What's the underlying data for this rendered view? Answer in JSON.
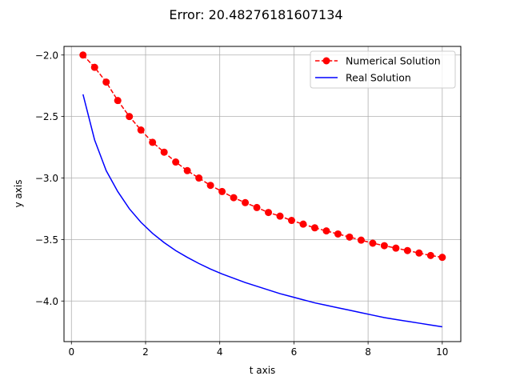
{
  "chart_data": {
    "type": "line",
    "title": "Error: 20.48276181607134",
    "xlabel": "t axis",
    "ylabel": "y axis",
    "xlim": [
      -0.2,
      10.5
    ],
    "ylim": [
      -4.33,
      -1.93
    ],
    "xticks": [
      0,
      2,
      4,
      6,
      8,
      10
    ],
    "xtick_labels": [
      "0",
      "2",
      "4",
      "6",
      "8",
      "10"
    ],
    "yticks": [
      -4.0,
      -3.5,
      -3.0,
      -2.5,
      -2.0
    ],
    "ytick_labels": [
      "−4.0",
      "−3.5",
      "−3.0",
      "−2.5",
      "−2.0"
    ],
    "grid": true,
    "legend_position": "top-right",
    "series": [
      {
        "name": "Numerical Solution",
        "color": "#ff0000",
        "style": "dashed-with-circle-markers",
        "x": [
          0.3125,
          0.625,
          0.9375,
          1.25,
          1.5625,
          1.875,
          2.1875,
          2.5,
          2.8125,
          3.125,
          3.4375,
          3.75,
          4.0625,
          4.375,
          4.6875,
          5.0,
          5.3125,
          5.625,
          5.9375,
          6.25,
          6.5625,
          6.875,
          7.1875,
          7.5,
          7.8125,
          8.125,
          8.4375,
          8.75,
          9.0625,
          9.375,
          9.6875,
          10.0
        ],
        "y": [
          -2.0,
          -2.1,
          -2.22,
          -2.37,
          -2.5,
          -2.61,
          -2.71,
          -2.79,
          -2.87,
          -2.94,
          -3.0,
          -3.06,
          -3.11,
          -3.16,
          -3.2,
          -3.24,
          -3.28,
          -3.31,
          -3.345,
          -3.375,
          -3.405,
          -3.43,
          -3.455,
          -3.48,
          -3.505,
          -3.53,
          -3.55,
          -3.57,
          -3.59,
          -3.61,
          -3.63,
          -3.645
        ]
      },
      {
        "name": "Real Solution",
        "color": "#0000ff",
        "style": "solid",
        "x": [
          0.3125,
          0.625,
          0.9375,
          1.25,
          1.5625,
          1.875,
          2.1875,
          2.5,
          2.8125,
          3.125,
          3.4375,
          3.75,
          4.0625,
          4.375,
          4.6875,
          5.0,
          5.3125,
          5.625,
          5.9375,
          6.25,
          6.5625,
          6.875,
          7.1875,
          7.5,
          7.8125,
          8.125,
          8.4375,
          8.75,
          9.0625,
          9.375,
          9.6875,
          10.0
        ],
        "y": [
          -2.32,
          -2.69,
          -2.94,
          -3.11,
          -3.25,
          -3.36,
          -3.45,
          -3.525,
          -3.59,
          -3.645,
          -3.695,
          -3.74,
          -3.78,
          -3.815,
          -3.85,
          -3.88,
          -3.91,
          -3.94,
          -3.965,
          -3.99,
          -4.015,
          -4.035,
          -4.055,
          -4.075,
          -4.095,
          -4.115,
          -4.135,
          -4.15,
          -4.165,
          -4.18,
          -4.195,
          -4.21
        ]
      }
    ]
  }
}
